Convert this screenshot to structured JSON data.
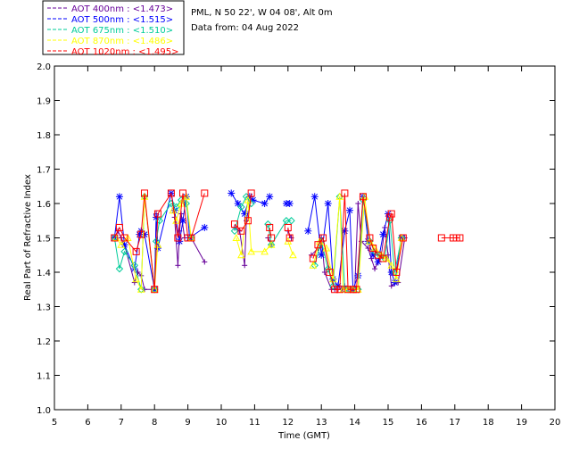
{
  "info": {
    "site": "PML, N 50 22', W 04 08', Alt 0m",
    "date": "Data from: 04 Aug 2022"
  },
  "chart_data": {
    "type": "scatter",
    "xlabel": "Time (GMT)",
    "ylabel": "Real Part of Refractive Index",
    "xlim": [
      5,
      20
    ],
    "ylim": [
      1.0,
      2.0
    ],
    "xticks": [
      "5",
      "6",
      "7",
      "8",
      "9",
      "10",
      "11",
      "12",
      "13",
      "14",
      "15",
      "16",
      "17",
      "18",
      "19",
      "20"
    ],
    "yticks": [
      "1.0",
      "1.1",
      "1.2",
      "1.3",
      "1.4",
      "1.5",
      "1.6",
      "1.7",
      "1.8",
      "1.9",
      "2.0"
    ],
    "grid": false,
    "legend_position": "top-left outside",
    "series": [
      {
        "name": "AOT  400nm : <1.473>",
        "color": "#660099",
        "marker": "plus",
        "x": [
          6.8,
          6.9,
          7.0,
          7.1,
          7.4,
          7.5,
          7.6,
          7.7,
          8.0,
          8.05,
          8.1,
          8.6,
          8.7,
          8.75,
          8.8,
          8.9,
          9.0,
          9.1,
          9.5,
          10.4,
          10.55,
          10.7,
          10.75,
          10.9,
          11.4,
          11.5,
          12.0,
          12.1,
          12.7,
          12.9,
          13.0,
          13.1,
          13.3,
          13.4,
          13.5,
          13.6,
          13.7,
          13.8,
          13.9,
          14.0,
          14.1,
          14.2,
          14.4,
          14.5,
          14.6,
          14.7,
          14.8,
          14.9,
          15.0,
          15.1,
          15.3,
          15.5
        ],
        "y": [
          1.5,
          1.52,
          1.5,
          1.48,
          1.37,
          1.4,
          1.39,
          1.35,
          1.35,
          1.57,
          1.47,
          1.56,
          1.42,
          1.52,
          1.57,
          1.5,
          1.5,
          1.5,
          1.43,
          1.53,
          1.52,
          1.42,
          1.55,
          1.62,
          1.5,
          1.48,
          1.52,
          1.5,
          1.45,
          1.47,
          1.5,
          1.4,
          1.35,
          1.35,
          1.35,
          1.35,
          1.36,
          1.35,
          1.35,
          1.35,
          1.6,
          1.49,
          1.47,
          1.44,
          1.41,
          1.43,
          1.45,
          1.53,
          1.45,
          1.36,
          1.37,
          1.5
        ]
      },
      {
        "name": "AOT  500nm : <1.515>",
        "color": "#0000ff",
        "marker": "asterisk",
        "x": [
          6.8,
          6.95,
          7.1,
          7.4,
          7.55,
          7.6,
          7.7,
          8.0,
          8.05,
          8.1,
          8.5,
          8.6,
          8.75,
          8.85,
          8.95,
          9.05,
          9.5,
          10.3,
          10.5,
          10.7,
          10.85,
          10.95,
          11.3,
          11.45,
          11.95,
          12.05,
          12.6,
          12.8,
          13.0,
          13.2,
          13.35,
          13.5,
          13.7,
          13.85,
          13.95,
          14.1,
          14.25,
          14.4,
          14.55,
          14.7,
          14.85,
          15.0,
          15.1,
          15.2,
          15.4
        ],
        "y": [
          1.5,
          1.62,
          1.48,
          1.41,
          1.51,
          1.52,
          1.51,
          1.35,
          1.56,
          1.47,
          1.63,
          1.58,
          1.49,
          1.55,
          1.62,
          1.5,
          1.53,
          1.63,
          1.6,
          1.57,
          1.62,
          1.61,
          1.6,
          1.62,
          1.6,
          1.6,
          1.52,
          1.62,
          1.45,
          1.6,
          1.38,
          1.36,
          1.52,
          1.58,
          1.35,
          1.39,
          1.62,
          1.49,
          1.45,
          1.43,
          1.51,
          1.57,
          1.4,
          1.37,
          1.5
        ]
      },
      {
        "name": "AOT  675nm : <1.510>",
        "color": "#00cc99",
        "marker": "diamond",
        "x": [
          6.8,
          6.95,
          7.1,
          7.4,
          7.6,
          7.7,
          8.0,
          8.05,
          8.15,
          8.5,
          8.65,
          8.8,
          8.95,
          9.1,
          10.4,
          10.6,
          10.75,
          10.9,
          11.4,
          11.5,
          11.95,
          12.1,
          12.8,
          13.0,
          13.2,
          13.35,
          13.55,
          13.7,
          13.8,
          13.95,
          14.1,
          14.25,
          14.45,
          14.6,
          14.75,
          14.9,
          15.05,
          15.2,
          15.4
        ],
        "y": [
          1.5,
          1.41,
          1.46,
          1.42,
          1.35,
          1.62,
          1.35,
          1.49,
          1.55,
          1.6,
          1.59,
          1.61,
          1.6,
          1.5,
          1.52,
          1.59,
          1.62,
          1.6,
          1.54,
          1.48,
          1.55,
          1.55,
          1.42,
          1.49,
          1.41,
          1.36,
          1.62,
          1.35,
          1.35,
          1.35,
          1.35,
          1.61,
          1.49,
          1.46,
          1.45,
          1.44,
          1.55,
          1.4,
          1.5
        ]
      },
      {
        "name": "AOT  870nm : <1.486>",
        "color": "#ffff00",
        "marker": "triangle",
        "x": [
          6.85,
          7.0,
          7.2,
          7.45,
          7.6,
          7.7,
          8.0,
          8.1,
          8.55,
          8.65,
          8.8,
          8.95,
          9.1,
          10.45,
          10.6,
          10.8,
          10.9,
          11.3,
          11.5,
          12.0,
          12.15,
          12.75,
          12.95,
          13.15,
          13.35,
          13.55,
          13.65,
          13.8,
          13.95,
          14.1,
          14.3,
          14.45,
          14.6,
          14.8,
          14.95,
          15.1,
          15.25,
          15.4
        ],
        "y": [
          1.5,
          1.48,
          1.5,
          1.38,
          1.35,
          1.62,
          1.35,
          1.48,
          1.58,
          1.55,
          1.6,
          1.62,
          1.5,
          1.5,
          1.45,
          1.61,
          1.46,
          1.46,
          1.48,
          1.49,
          1.45,
          1.42,
          1.49,
          1.47,
          1.38,
          1.62,
          1.35,
          1.35,
          1.35,
          1.35,
          1.62,
          1.49,
          1.47,
          1.45,
          1.44,
          1.42,
          1.38,
          1.5
        ]
      },
      {
        "name": "AOT 1020nm : <1.495>",
        "color": "#ff0000",
        "marker": "square",
        "x": [
          6.8,
          6.95,
          7.1,
          7.45,
          7.6,
          7.7,
          8.0,
          8.1,
          8.5,
          8.7,
          8.85,
          9.0,
          9.1,
          9.5,
          10.4,
          10.6,
          10.8,
          10.9,
          11.45,
          11.5,
          12.0,
          12.05,
          12.75,
          12.9,
          13.05,
          13.25,
          13.4,
          13.55,
          13.7,
          13.8,
          13.95,
          14.05,
          14.25,
          14.45,
          14.55,
          14.7,
          14.85,
          15.05,
          15.1,
          15.25,
          15.45,
          16.6,
          16.95,
          17.05,
          17.15
        ],
        "y": [
          1.5,
          1.53,
          1.5,
          1.46,
          1.51,
          1.63,
          1.35,
          1.57,
          1.63,
          1.5,
          1.63,
          1.5,
          1.5,
          1.63,
          1.54,
          1.52,
          1.55,
          1.63,
          1.53,
          1.5,
          1.53,
          1.5,
          1.44,
          1.48,
          1.5,
          1.4,
          1.35,
          1.35,
          1.63,
          1.35,
          1.35,
          1.35,
          1.62,
          1.5,
          1.47,
          1.45,
          1.44,
          1.56,
          1.57,
          1.4,
          1.5,
          1.5,
          1.5,
          1.5,
          1.5
        ]
      }
    ]
  }
}
